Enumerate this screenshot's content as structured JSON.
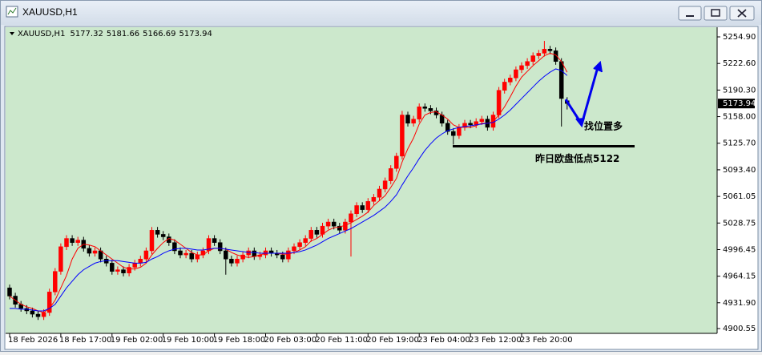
{
  "chart_data": {
    "type": "candlestick",
    "title": "XAUUSD,H1",
    "categories": [
      "18 Feb 2026",
      null,
      null,
      null,
      null,
      null,
      null,
      null,
      null,
      "18 Feb 17:00",
      null,
      null,
      null,
      null,
      null,
      null,
      null,
      null,
      "19 Feb 02:00",
      null,
      null,
      null,
      null,
      null,
      null,
      null,
      null,
      "19 Feb 10:00",
      null,
      null,
      null,
      null,
      null,
      null,
      null,
      null,
      "19 Feb 18:00",
      null,
      null,
      null,
      null,
      null,
      null,
      null,
      null,
      "20 Feb 03:00",
      null,
      null,
      null,
      null,
      null,
      null,
      null,
      null,
      "20 Feb 11:00",
      null,
      null,
      null,
      null,
      null,
      null,
      null,
      null,
      "20 Feb 19:00",
      null,
      null,
      null,
      null,
      null,
      null,
      null,
      null,
      "23 Feb 04:00",
      null,
      null,
      null,
      null,
      null,
      null,
      null,
      null,
      "23 Feb 12:00",
      null,
      null,
      null,
      null,
      null,
      null,
      null,
      null,
      "23 Feb 20:00",
      null,
      null,
      null,
      null,
      null,
      null,
      null,
      null
    ],
    "open": [
      4950,
      4940,
      4930,
      4925,
      4922,
      4918,
      4915,
      4920,
      4945,
      4970,
      5000,
      5010,
      5005,
      5008,
      4998,
      4992,
      4995,
      4985,
      4980,
      4970,
      4972,
      4968,
      4975,
      4980,
      4985,
      4995,
      5020,
      5015,
      5012,
      5005,
      4995,
      4990,
      4992,
      4985,
      4990,
      4995,
      5010,
      5005,
      4995,
      4985,
      4980,
      4985,
      4990,
      4995,
      4988,
      4990,
      4995,
      4992,
      4990,
      4985,
      4995,
      5000,
      5005,
      5010,
      5020,
      5015,
      5025,
      5030,
      5025,
      5020,
      5030,
      5040,
      5050,
      5045,
      5055,
      5060,
      5070,
      5080,
      5095,
      5110,
      5160,
      5150,
      5155,
      5170,
      5168,
      5165,
      5160,
      5150,
      5140,
      5135,
      5145,
      5150,
      5148,
      5152,
      5155,
      5145,
      5160,
      5190,
      5200,
      5205,
      5215,
      5220,
      5225,
      5232,
      5235,
      5240,
      5238,
      5225,
      5177.32
    ],
    "high": [
      4954,
      4944,
      4934,
      4929,
      4926,
      4922,
      4924,
      4949,
      4974,
      5004,
      5014,
      5014,
      5012,
      5012,
      5002,
      4999,
      4999,
      4989,
      4984,
      4976,
      4976,
      4979,
      4984,
      4989,
      4999,
      5024,
      5024,
      5019,
      5016,
      5009,
      4999,
      4996,
      4996,
      4994,
      4999,
      5014,
      5014,
      5009,
      4999,
      4989,
      4989,
      4994,
      4999,
      4999,
      4994,
      4999,
      4999,
      4996,
      4994,
      4999,
      5004,
      5009,
      5014,
      5024,
      5024,
      5029,
      5034,
      5034,
      5029,
      5034,
      5044,
      5054,
      5054,
      5059,
      5064,
      5074,
      5084,
      5099,
      5114,
      5165,
      5164,
      5159,
      5174,
      5174,
      5172,
      5169,
      5164,
      5154,
      5144,
      5149,
      5154,
      5154,
      5156,
      5159,
      5159,
      5164,
      5194,
      5204,
      5209,
      5219,
      5224,
      5229,
      5236,
      5239,
      5250,
      5244,
      5242,
      5229,
      5181.66
    ],
    "low": [
      4936,
      4926,
      4921,
      4918,
      4914,
      4911,
      4911,
      4916,
      4941,
      4966,
      4996,
      5001,
      5001,
      4994,
      4988,
      4988,
      4981,
      4976,
      4966,
      4966,
      4964,
      4964,
      4971,
      4976,
      4981,
      4991,
      5011,
      5008,
      5001,
      4991,
      4986,
      4986,
      4981,
      4981,
      4986,
      4991,
      5001,
      4991,
      4966,
      4976,
      4976,
      4981,
      4986,
      4984,
      4984,
      4986,
      4988,
      4986,
      4981,
      4981,
      4991,
      4996,
      5001,
      5006,
      5011,
      5011,
      5021,
      5021,
      5016,
      5016,
      4988,
      5036,
      5041,
      5041,
      5051,
      5056,
      5066,
      5076,
      5091,
      5106,
      5146,
      5146,
      5151,
      5164,
      5161,
      5156,
      5146,
      5136,
      5124,
      5131,
      5141,
      5144,
      5144,
      5148,
      5141,
      5141,
      5156,
      5186,
      5196,
      5201,
      5211,
      5216,
      5221,
      5228,
      5231,
      5234,
      5221,
      5146,
      5166.69
    ],
    "close": [
      4940,
      4930,
      4925,
      4922,
      4918,
      4915,
      4920,
      4945,
      4970,
      5000,
      5010,
      5005,
      5008,
      4998,
      4992,
      4995,
      4985,
      4980,
      4970,
      4972,
      4968,
      4975,
      4980,
      4985,
      4995,
      5020,
      5015,
      5012,
      5005,
      4995,
      4990,
      4992,
      4985,
      4990,
      4995,
      5010,
      5005,
      4995,
      4985,
      4980,
      4985,
      4990,
      4995,
      4988,
      4990,
      4995,
      4992,
      4990,
      4985,
      4995,
      5000,
      5005,
      5010,
      5020,
      5015,
      5025,
      5030,
      5025,
      5020,
      5030,
      5040,
      5050,
      5045,
      5055,
      5060,
      5070,
      5080,
      5095,
      5110,
      5160,
      5150,
      5155,
      5170,
      5168,
      5165,
      5160,
      5150,
      5140,
      5135,
      5145,
      5150,
      5148,
      5152,
      5155,
      5145,
      5160,
      5190,
      5200,
      5205,
      5215,
      5220,
      5225,
      5232,
      5235,
      5240,
      5238,
      5225,
      5180,
      5173.94
    ],
    "up_color": "#ff0000",
    "down_color": "#000000",
    "series": [
      {
        "color": "#ff0000",
        "values": [
          4940,
          4935,
          4930,
          4927,
          4925,
          4922,
          4920,
          4925,
          4935,
          4950,
          4965,
          4985,
          4998,
          5003,
          5002,
          5000,
          4995,
          4990,
          4985,
          4980,
          4975,
          4973,
          4973,
          4975,
          4980,
          4990,
          4998,
          5005,
          5010,
          5008,
          5003,
          4998,
          4993,
          4990,
          4990,
          4995,
          4998,
          4998,
          4997,
          4993,
          4990,
          4988,
          4987,
          4988,
          4990,
          4992,
          4992,
          4992,
          4991,
          4991,
          4993,
          4996,
          5000,
          5007,
          5010,
          5015,
          5020,
          5023,
          5024,
          5026,
          5029,
          5033,
          5037,
          5042,
          5050,
          5056,
          5062,
          5072,
          5083,
          5103,
          5119,
          5132,
          5149,
          5160,
          5163,
          5164,
          5160,
          5155,
          5148,
          5145,
          5145,
          5145,
          5147,
          5150,
          5150,
          5152,
          5160,
          5170,
          5182,
          5195,
          5206,
          5213,
          5220,
          5226,
          5232,
          5235,
          5233,
          5225,
          5212
        ]
      },
      {
        "color": "#0000ff",
        "values": [
          4925,
          4925,
          4924,
          4924,
          4923,
          4922,
          4922,
          4925,
          4930,
          4940,
          4950,
          4958,
          4966,
          4972,
          4976,
          4980,
          4982,
          4983,
          4983,
          4983,
          4982,
          4981,
          4980,
          4980,
          4981,
          4985,
          4988,
          4992,
          4995,
          4997,
          4998,
          4998,
          4997,
          4996,
          4996,
          4997,
          4998,
          4998,
          4997,
          4996,
          4995,
          4994,
          4993,
          4993,
          4992,
          4992,
          4992,
          4992,
          4992,
          4992,
          4993,
          4994,
          4996,
          4999,
          5002,
          5006,
          5010,
          5013,
          5016,
          5019,
          5022,
          5026,
          5030,
          5034,
          5038,
          5043,
          5048,
          5055,
          5063,
          5075,
          5086,
          5096,
          5107,
          5117,
          5125,
          5132,
          5137,
          5141,
          5143,
          5145,
          5146,
          5147,
          5148,
          5149,
          5150,
          5151,
          5155,
          5160,
          5166,
          5173,
          5180,
          5187,
          5194,
          5201,
          5207,
          5212,
          5216,
          5214,
          5208
        ]
      }
    ],
    "ylim": [
      4894.7,
      5266.6
    ],
    "yticks": [
      {
        "value": 5254.9,
        "label": "5254.90"
      },
      {
        "value": 5222.6,
        "label": "5222.60"
      },
      {
        "value": 5190.3,
        "label": "5190.30"
      },
      {
        "value": 5158,
        "label": "5158.00"
      },
      {
        "value": 5125.7,
        "label": "5125.70"
      },
      {
        "value": 5093.4,
        "label": "5093.40"
      },
      {
        "value": 5061.05,
        "label": "5061.05"
      },
      {
        "value": 5028.75,
        "label": "5028.75"
      },
      {
        "value": 4996.45,
        "label": "4996.45"
      },
      {
        "value": 4964.15,
        "label": "4964.15"
      },
      {
        "value": 4931.9,
        "label": "4931.90"
      },
      {
        "value": 4900.55,
        "label": "4900.55"
      }
    ],
    "support_level": 5122,
    "annotations": [
      "找位置多",
      "昨日欧盘低点5122"
    ]
  }
}
